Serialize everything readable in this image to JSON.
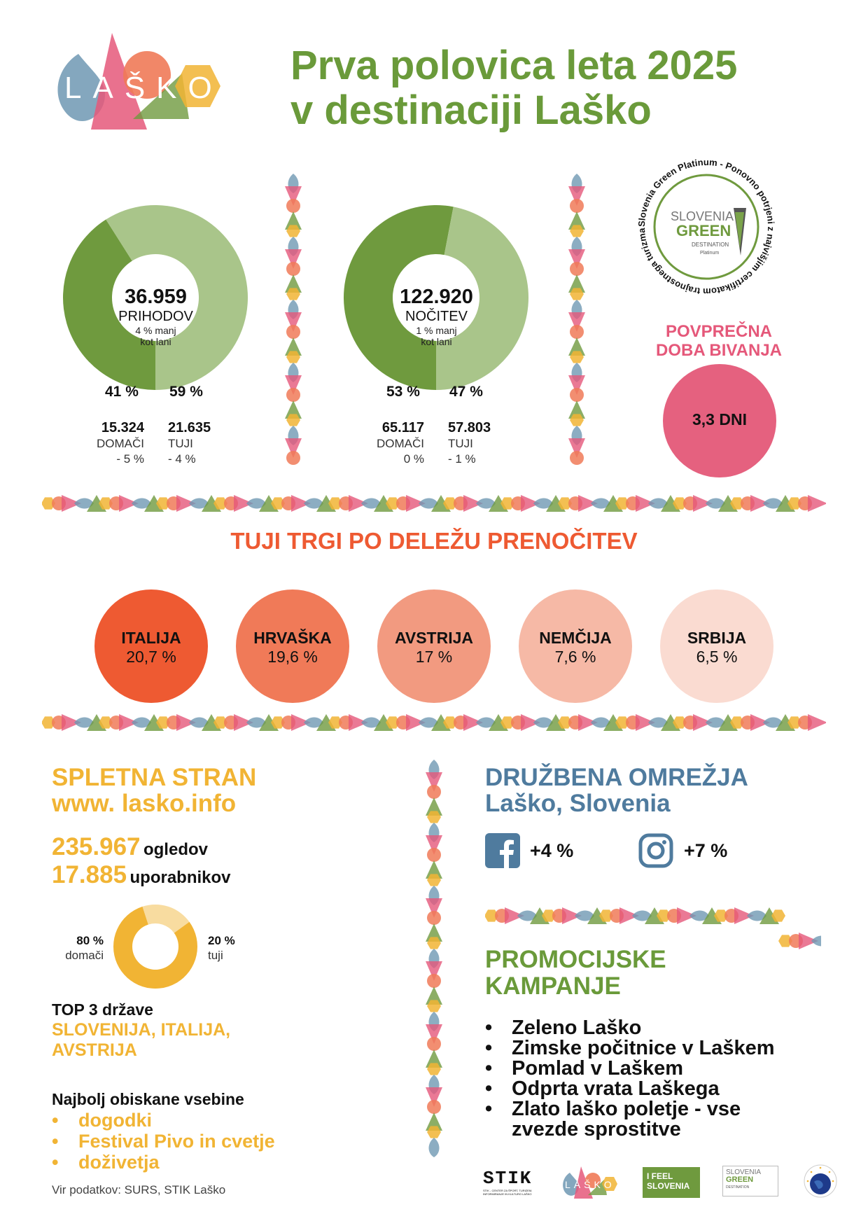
{
  "logo": {
    "text": "LAŠKO"
  },
  "title": {
    "line1": "Prva polovica leta 2025",
    "line2": "v destinaciji Laško"
  },
  "arrivals": {
    "value": "36.959",
    "label": "PRIHODOV",
    "note1": "4 % manj",
    "note2": "kot lani",
    "domestic_pct": "41 %",
    "foreign_pct": "59 %",
    "domestic_share": 0.41,
    "domestic_value": "15.324",
    "domestic_label": "DOMAČI",
    "domestic_change": "- 5 %",
    "foreign_value": "21.635",
    "foreign_label": "TUJI",
    "foreign_change": "- 4 %"
  },
  "nights": {
    "value": "122.920",
    "label": "NOČITEV",
    "note1": "1 % manj",
    "note2": "kot lani",
    "domestic_pct": "53 %",
    "foreign_pct": "47 %",
    "domestic_share": 0.53,
    "domestic_value": "65.117",
    "domestic_label": "DOMAČI",
    "domestic_change": "0 %",
    "foreign_value": "57.803",
    "foreign_label": "TUJI",
    "foreign_change": "- 1 %"
  },
  "badge": {
    "ring_text": "Slovenia Green Platinum - Ponovno potrjeni z najvišjim certifikatom trajnostnega turizma -",
    "line1": "SLOVENIA",
    "line2": "GREEN",
    "line3": "DESTINATION",
    "line4": "Platinum"
  },
  "avg_stay": {
    "title1": "POVPREČNA",
    "title2": "DOBA BIVANJA",
    "value": "3,3 DNI"
  },
  "markets": {
    "title": "TUJI TRGI PO DELEŽU PRENOČITEV",
    "items": [
      {
        "name": "ITALIJA",
        "value": "20,7 %",
        "color": "#ee5a32"
      },
      {
        "name": "HRVAŠKA",
        "value": "19,6 %",
        "color": "#f07a58"
      },
      {
        "name": "AVSTRIJA",
        "value": "17 %",
        "color": "#f29a80"
      },
      {
        "name": "NEMČIJA",
        "value": "7,6 %",
        "color": "#f6b9a6"
      },
      {
        "name": "SRBIJA",
        "value": "6,5 %",
        "color": "#fadbd1"
      }
    ]
  },
  "web": {
    "title1": "SPLETNA STRAN",
    "title2": "www. lasko.info",
    "views_value": "235.967",
    "views_label": "ogledov",
    "users_value": "17.885",
    "users_label": "uporabnikov",
    "domestic_pct": "80 %",
    "domestic_label": "domači",
    "domestic_share": 0.8,
    "foreign_pct": "20 %",
    "foreign_label": "tuji",
    "top3_label": "TOP 3 države",
    "top3_line1": "SLOVENIJA, ITALIJA,",
    "top3_line2": "AVSTRIJA",
    "content_title": "Najbolj obiskane vsebine",
    "content_items": [
      "dogodki",
      "Festival Pivo in cvetje",
      "doživetja"
    ]
  },
  "social": {
    "title1": "DRUŽBENA OMREŽJA",
    "title2": "Laško, Slovenia",
    "facebook_change": "+4 %",
    "instagram_change": "+7 %"
  },
  "campaigns": {
    "title1": "PROMOCIJSKE",
    "title2": "KAMPANJE",
    "items": [
      "Zeleno Laško",
      "Zimske počitnice v Laškem",
      "Pomlad v Laškem",
      "Odprta vrata Laškega",
      "Zlato laško poletje - vse"
    ],
    "item5_cont": "zvezde sprostitve"
  },
  "source": "Vir podatkov: SURS, STIK Laško",
  "footer_logos": {
    "stik": "STIK",
    "stik_sub1": "STIK - CENTER ZA ŠPORT, TURIZEM,",
    "stik_sub2": "INFORMIRANJE IN KULTURO LAŠKO",
    "lasko": "LAŠKO",
    "ifeel1": "I FEEL",
    "ifeel2": "SLOVENIA",
    "sg1": "SLOVENIA",
    "sg2": "GREEN",
    "sg3": "DESTINATION"
  },
  "colors": {
    "green_dark": "#6f9a3e",
    "green_light": "#a9c58a",
    "pink": "#e5587a",
    "yellow": "#f1b434",
    "blue": "#4f7b9e",
    "orange": "#ee5a32"
  }
}
